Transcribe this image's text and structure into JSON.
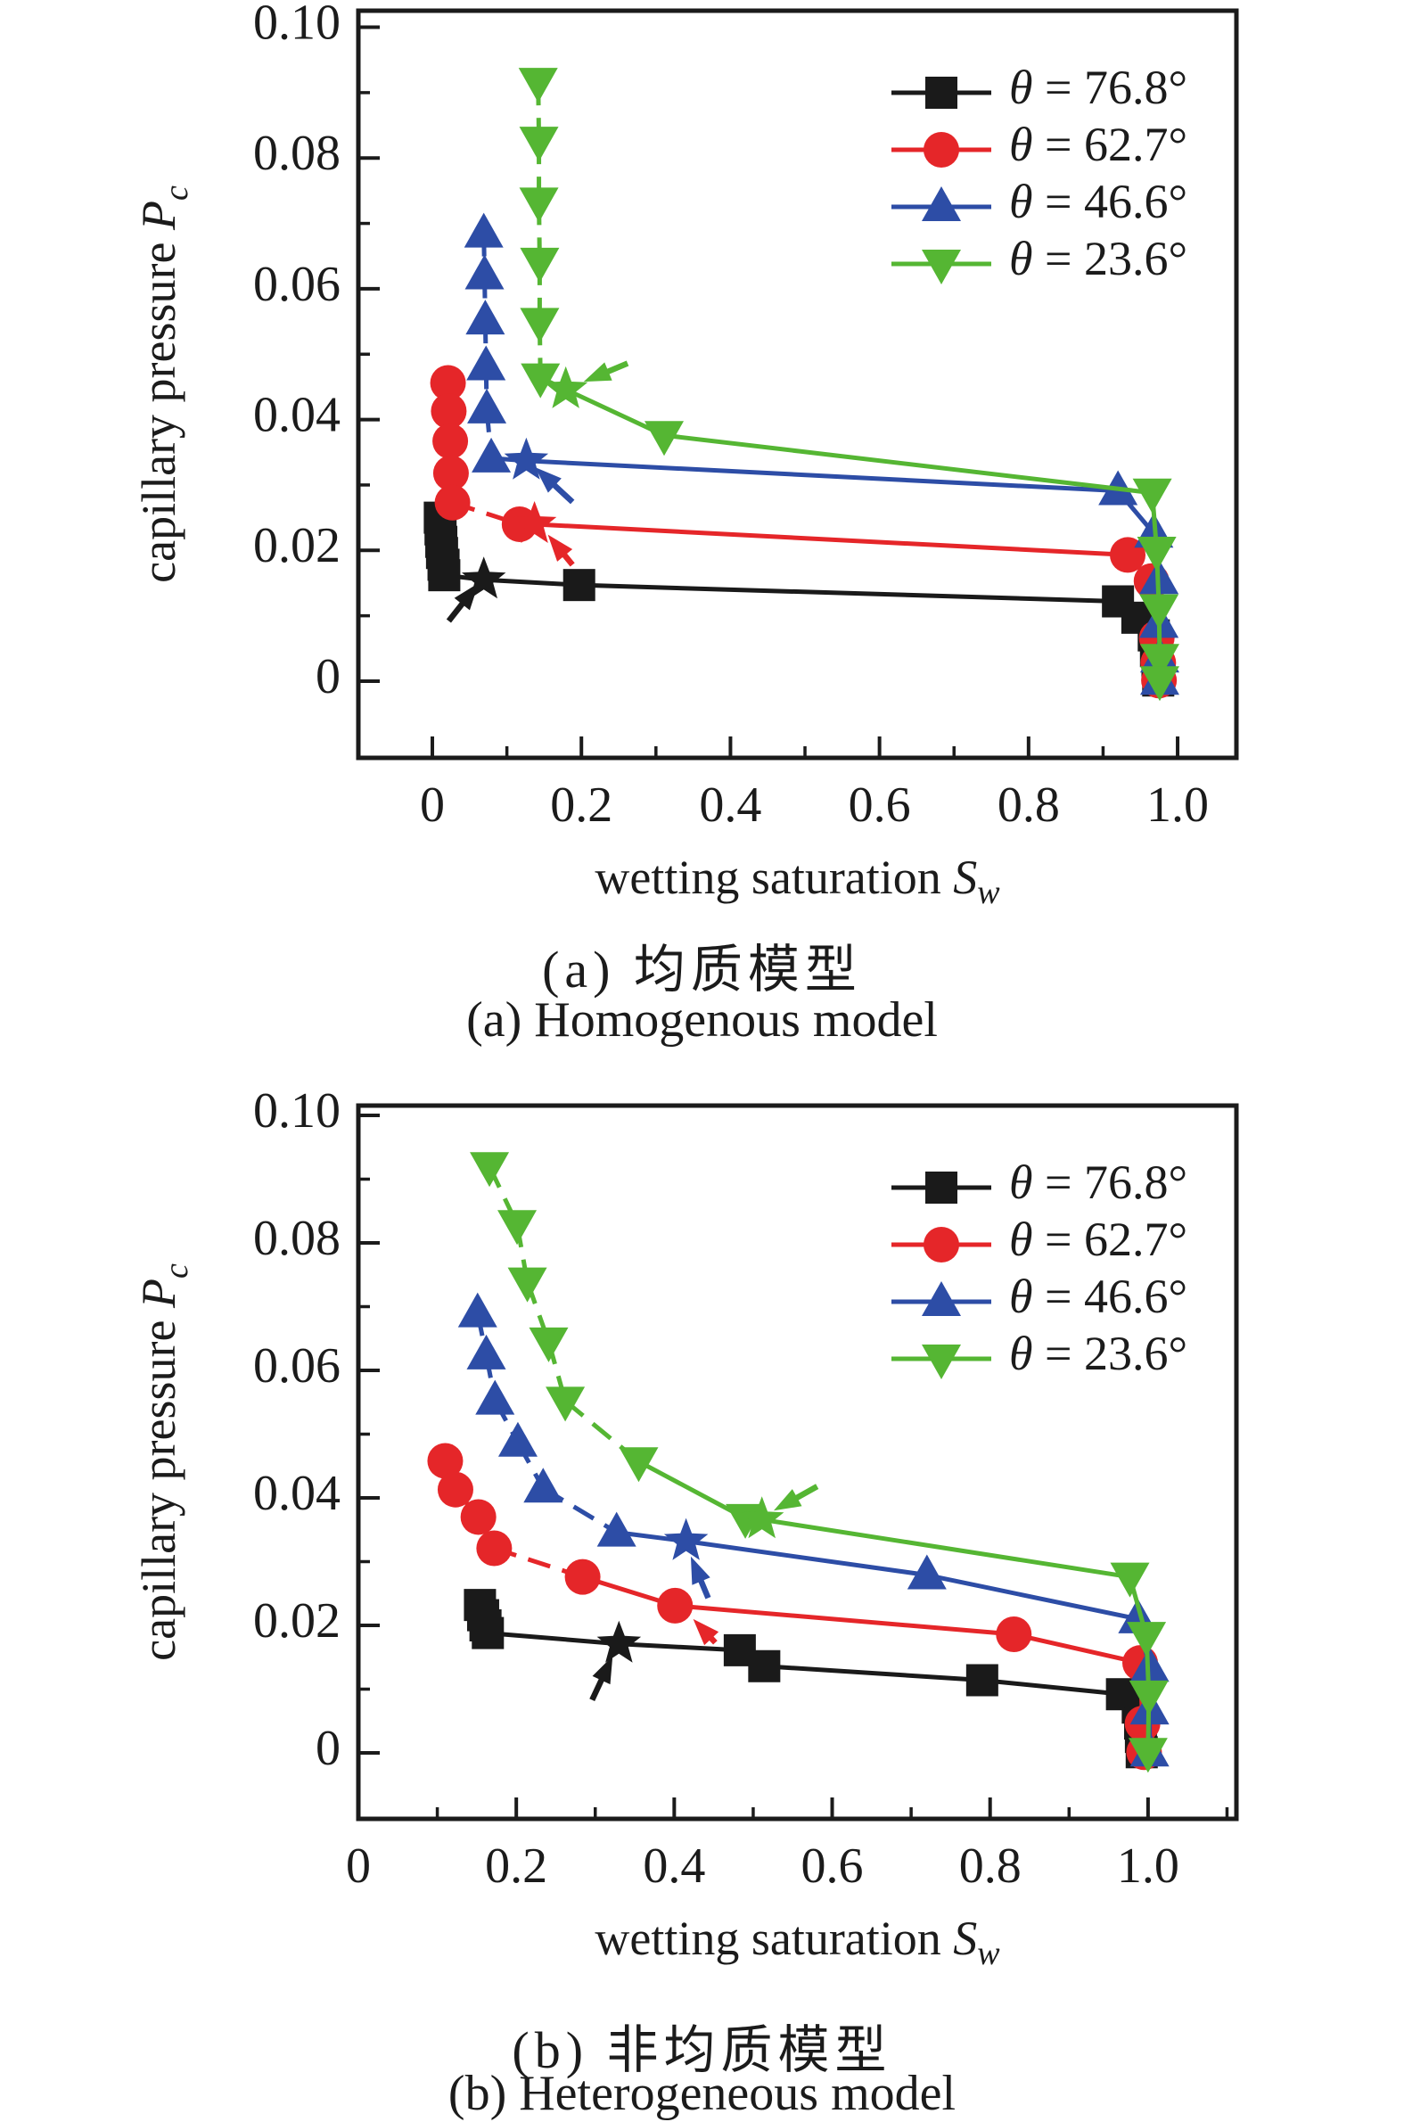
{
  "figure": {
    "background": "#ffffff",
    "captions": {
      "a_zh": "(a) 均质模型",
      "a_en": "(a) Homogenous model",
      "b_zh": "(b) 非均质模型",
      "b_en": "(b) Heterogeneous model"
    }
  },
  "colors": {
    "black": "#1a1a1a",
    "red": "#e52629",
    "blue": "#2d4da6",
    "green": "#55b633",
    "axis": "#1b1b1b"
  },
  "chart_data": [
    {
      "id": "a",
      "type": "line",
      "caption_zh": "(a) 均质模型",
      "caption_en": "(a) Homogenous model",
      "xlabel": {
        "text": "wetting saturation ",
        "symbol": "S",
        "subscript": "w"
      },
      "ylabel": {
        "text": "capillary pressure ",
        "symbol": "P",
        "subscript": "c"
      },
      "xlim": [
        -0.0993,
        1.0789
      ],
      "ylim": [
        -0.01173,
        0.10253
      ],
      "grid": false,
      "legend_position": "top-right-inside",
      "xticks": {
        "values": [
          0,
          0.2,
          0.4,
          0.6,
          0.8,
          1.0
        ],
        "labels": [
          "0",
          "0.2",
          "0.4",
          "0.6",
          "0.8",
          "1.0"
        ],
        "minor": [
          0.1,
          0.3,
          0.5,
          0.7,
          0.9
        ]
      },
      "yticks": {
        "values": [
          0,
          0.02,
          0.04,
          0.06,
          0.08,
          0.1
        ],
        "labels": [
          "0",
          "0.02",
          "0.04",
          "0.06",
          "0.08",
          "0.10"
        ],
        "minor": [
          0.01,
          0.03,
          0.05,
          0.07,
          0.09
        ]
      },
      "series": [
        {
          "name": "θ = 76.8°",
          "color_key": "black",
          "marker": "square",
          "dash_until": 0,
          "star_at": 6,
          "points": [
            [
              0.01,
              0.025
            ],
            [
              0.011,
              0.0232
            ],
            [
              0.012,
              0.0213
            ],
            [
              0.013,
              0.0196
            ],
            [
              0.015,
              0.0178
            ],
            [
              0.016,
              0.0162
            ],
            [
              0.069,
              0.0155
            ],
            [
              0.197,
              0.0147
            ],
            [
              0.92,
              0.0122
            ],
            [
              0.946,
              0.0097
            ],
            [
              0.968,
              0.007
            ],
            [
              0.971,
              0.0046
            ],
            [
              0.973,
              0.002
            ],
            [
              0.974,
              0.0001
            ]
          ]
        },
        {
          "name": "θ = 62.7°",
          "color_key": "red",
          "marker": "circle",
          "dash_until": 5,
          "star_at": 6,
          "points": [
            [
              0.021,
              0.0456
            ],
            [
              0.022,
              0.0413
            ],
            [
              0.024,
              0.0367
            ],
            [
              0.025,
              0.0318
            ],
            [
              0.027,
              0.0273
            ],
            [
              0.117,
              0.024
            ],
            [
              0.137,
              0.024
            ],
            [
              0.933,
              0.0193
            ],
            [
              0.965,
              0.0153
            ],
            [
              0.972,
              0.0066
            ],
            [
              0.974,
              0.0028
            ],
            [
              0.975,
              0.0001
            ]
          ]
        },
        {
          "name": "θ = 46.6°",
          "color_key": "blue",
          "marker": "triangle-up",
          "dash_until": 5,
          "star_at": 6,
          "points": [
            [
              0.069,
              0.0685
            ],
            [
              0.07,
              0.0621
            ],
            [
              0.071,
              0.0552
            ],
            [
              0.072,
              0.0482
            ],
            [
              0.073,
              0.0416
            ],
            [
              0.079,
              0.0341
            ],
            [
              0.126,
              0.0337
            ],
            [
              0.92,
              0.0291
            ],
            [
              0.968,
              0.0226
            ],
            [
              0.975,
              0.0155
            ],
            [
              0.975,
              0.0088
            ],
            [
              0.976,
              0.0035
            ],
            [
              0.976,
              0.0001
            ]
          ]
        },
        {
          "name": "θ = 23.6°",
          "color_key": "green",
          "marker": "triangle-down",
          "dash_until": 5,
          "star_at": 6,
          "points": [
            [
              0.142,
              0.0916
            ],
            [
              0.143,
              0.0826
            ],
            [
              0.143,
              0.0733
            ],
            [
              0.144,
              0.0641
            ],
            [
              0.144,
              0.0549
            ],
            [
              0.145,
              0.0464
            ],
            [
              0.179,
              0.0446
            ],
            [
              0.311,
              0.0376
            ],
            [
              0.966,
              0.0288
            ],
            [
              0.972,
              0.0199
            ],
            [
              0.975,
              0.0111
            ],
            [
              0.976,
              0.0035
            ],
            [
              0.976,
              0.0001
            ]
          ]
        }
      ],
      "arrows": [
        {
          "color_key": "black",
          "from": [
            0.022,
            0.0092
          ],
          "to": [
            0.062,
            0.015
          ]
        },
        {
          "color_key": "red",
          "from": [
            0.188,
            0.0178
          ],
          "to": [
            0.155,
            0.0224
          ]
        },
        {
          "color_key": "blue",
          "from": [
            0.188,
            0.0274
          ],
          "to": [
            0.138,
            0.0327
          ]
        },
        {
          "color_key": "green",
          "from": [
            0.262,
            0.0486
          ],
          "to": [
            0.203,
            0.0458
          ]
        }
      ]
    },
    {
      "id": "b",
      "type": "line",
      "caption_zh": "(b) 非均质模型",
      "caption_en": "(b) Heterogeneous model",
      "xlabel": {
        "text": "wetting saturation ",
        "symbol": "S",
        "subscript": "w"
      },
      "ylabel": {
        "text": "capillary pressure ",
        "symbol": "P",
        "subscript": "c"
      },
      "xlim": [
        0,
        1.1119
      ],
      "ylim": [
        -0.01035,
        0.10154
      ],
      "grid": false,
      "legend_position": "top-right-inside",
      "xticks": {
        "values": [
          0,
          0.2,
          0.4,
          0.6,
          0.8,
          1.0
        ],
        "labels": [
          "0",
          "0.2",
          "0.4",
          "0.6",
          "0.8",
          "1.0"
        ],
        "minor": [
          0.1,
          0.3,
          0.5,
          0.7,
          0.9,
          1.1
        ]
      },
      "yticks": {
        "values": [
          0,
          0.02,
          0.04,
          0.06,
          0.08,
          0.1
        ],
        "labels": [
          "0",
          "0.02",
          "0.04",
          "0.06",
          "0.08",
          "0.10"
        ],
        "minor": [
          0.01,
          0.03,
          0.05,
          0.07,
          0.09
        ]
      },
      "series": [
        {
          "name": "θ = 76.8°",
          "color_key": "black",
          "marker": "square",
          "dash_until": 0,
          "star_at": 4,
          "points": [
            [
              0.154,
              0.0232
            ],
            [
              0.158,
              0.0216
            ],
            [
              0.161,
              0.02
            ],
            [
              0.164,
              0.0188
            ],
            [
              0.33,
              0.0171
            ],
            [
              0.483,
              0.0161
            ],
            [
              0.514,
              0.0136
            ],
            [
              0.79,
              0.0114
            ],
            [
              0.967,
              0.0092
            ],
            [
              0.987,
              0.0071
            ],
            [
              0.99,
              0.0046
            ],
            [
              0.991,
              0.0025
            ],
            [
              0.992,
              0.0001
            ]
          ]
        },
        {
          "name": "θ = 62.7°",
          "color_key": "red",
          "marker": "circle",
          "dash_until": 4,
          "star_at": -1,
          "points": [
            [
              0.11,
              0.0458
            ],
            [
              0.123,
              0.0413
            ],
            [
              0.152,
              0.037
            ],
            [
              0.172,
              0.0321
            ],
            [
              0.284,
              0.0276
            ],
            [
              0.401,
              0.0231
            ],
            [
              0.83,
              0.0186
            ],
            [
              0.99,
              0.0141
            ],
            [
              0.993,
              0.0046
            ],
            [
              0.995,
              0.0001
            ]
          ]
        },
        {
          "name": "θ = 46.6°",
          "color_key": "blue",
          "marker": "triangle-up",
          "dash_until": 5,
          "star_at": 6,
          "points": [
            [
              0.151,
              0.069
            ],
            [
              0.162,
              0.0624
            ],
            [
              0.173,
              0.0553
            ],
            [
              0.202,
              0.0487
            ],
            [
              0.234,
              0.0415
            ],
            [
              0.327,
              0.0346
            ],
            [
              0.415,
              0.0332
            ],
            [
              0.72,
              0.0279
            ],
            [
              0.987,
              0.021
            ],
            [
              1.002,
              0.0134
            ],
            [
              1.002,
              0.0067
            ],
            [
              1.002,
              0.0001
            ]
          ]
        },
        {
          "name": "θ = 23.6°",
          "color_key": "green",
          "marker": "triangle-down",
          "dash_until": 5,
          "star_at": 7,
          "points": [
            [
              0.166,
              0.092
            ],
            [
              0.201,
              0.0829
            ],
            [
              0.214,
              0.0739
            ],
            [
              0.241,
              0.0645
            ],
            [
              0.262,
              0.0552
            ],
            [
              0.355,
              0.0457
            ],
            [
              0.49,
              0.0368
            ],
            [
              0.511,
              0.0366
            ],
            [
              0.977,
              0.0276
            ],
            [
              0.998,
              0.0183
            ],
            [
              1.001,
              0.0091
            ],
            [
              1.0,
              0.0001
            ]
          ]
        }
      ],
      "arrows": [
        {
          "color_key": "black",
          "from": [
            0.296,
            0.0083
          ],
          "to": [
            0.322,
            0.0152
          ]
        },
        {
          "color_key": "red",
          "from": [
            0.452,
            0.0173
          ],
          "to": [
            0.424,
            0.021
          ]
        },
        {
          "color_key": "blue",
          "from": [
            0.443,
            0.0243
          ],
          "to": [
            0.421,
            0.0308
          ]
        },
        {
          "color_key": "green",
          "from": [
            0.581,
            0.0418
          ],
          "to": [
            0.526,
            0.038
          ]
        }
      ]
    }
  ]
}
